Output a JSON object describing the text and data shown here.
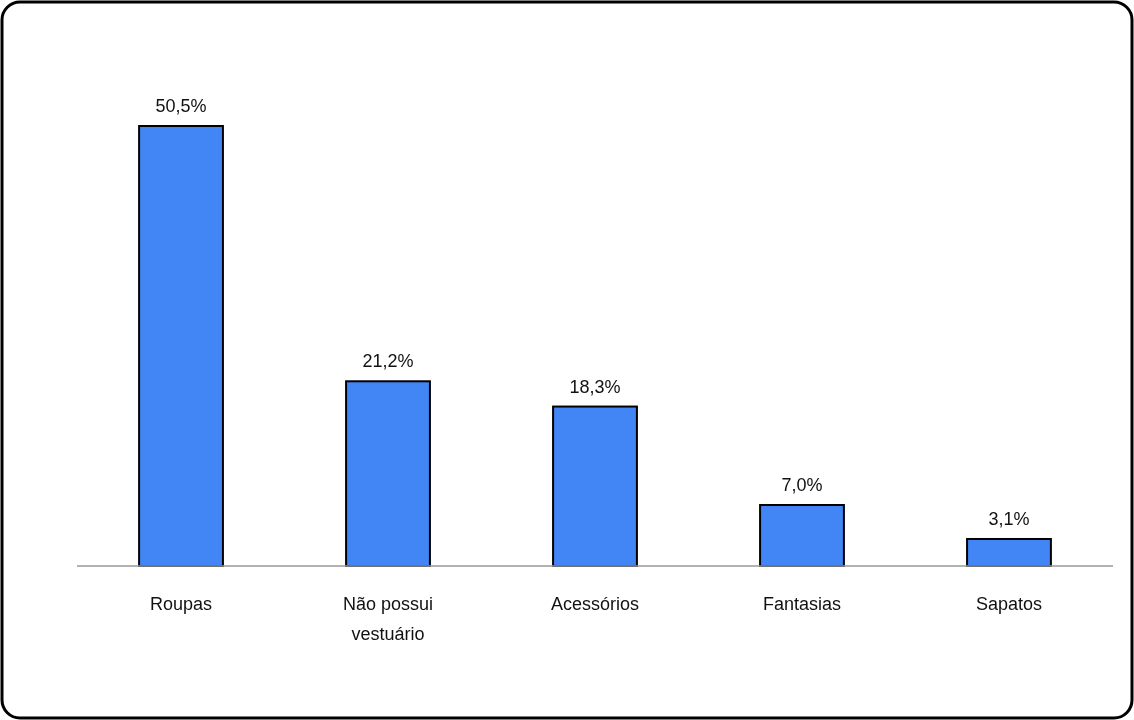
{
  "chart_data": {
    "type": "bar",
    "categories": [
      "Roupas",
      "Não possui vestuário",
      "Acessórios",
      "Fantasias",
      "Sapatos"
    ],
    "values": [
      50.5,
      21.2,
      18.3,
      7.0,
      3.1
    ],
    "value_labels": [
      "50,5%",
      "21,2%",
      "18,3%",
      "7,0%",
      "3,1%"
    ],
    "color": "#4285f4"
  }
}
